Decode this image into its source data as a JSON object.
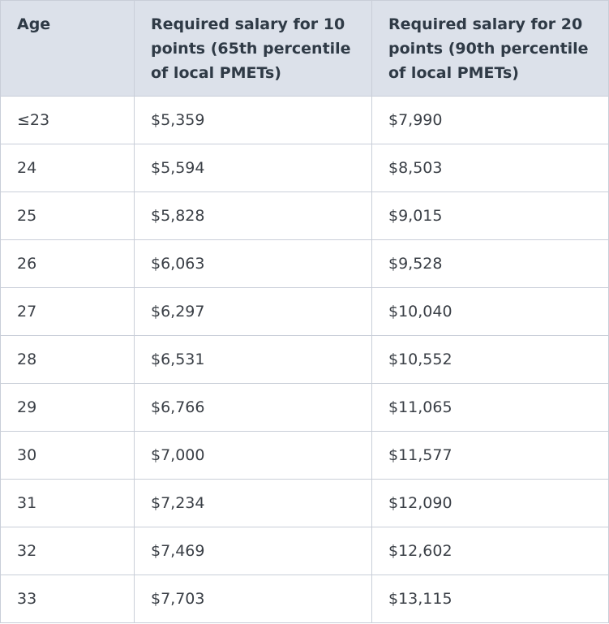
{
  "table": {
    "headers": [
      "Age",
      "Required salary for 10 points (65th percentile of local PMETs)",
      "Required salary for 20 points (90th percentile of local PMETs)"
    ],
    "rows": [
      [
        "≤23",
        "$5,359",
        "$7,990"
      ],
      [
        "24",
        "$5,594",
        "$8,503"
      ],
      [
        "25",
        "$5,828",
        "$9,015"
      ],
      [
        "26",
        "$6,063",
        "$9,528"
      ],
      [
        "27",
        "$6,297",
        "$10,040"
      ],
      [
        "28",
        "$6,531",
        "$10,552"
      ],
      [
        "29",
        "$6,766",
        "$11,065"
      ],
      [
        "30",
        "$7,000",
        "$11,577"
      ],
      [
        "31",
        "$7,234",
        "$12,090"
      ],
      [
        "32",
        "$7,469",
        "$12,602"
      ],
      [
        "33",
        "$7,703",
        "$13,115"
      ]
    ]
  },
  "colors": {
    "header_bg": "#dce1ea",
    "border": "#c9ced8",
    "text": "#3a3f46"
  }
}
